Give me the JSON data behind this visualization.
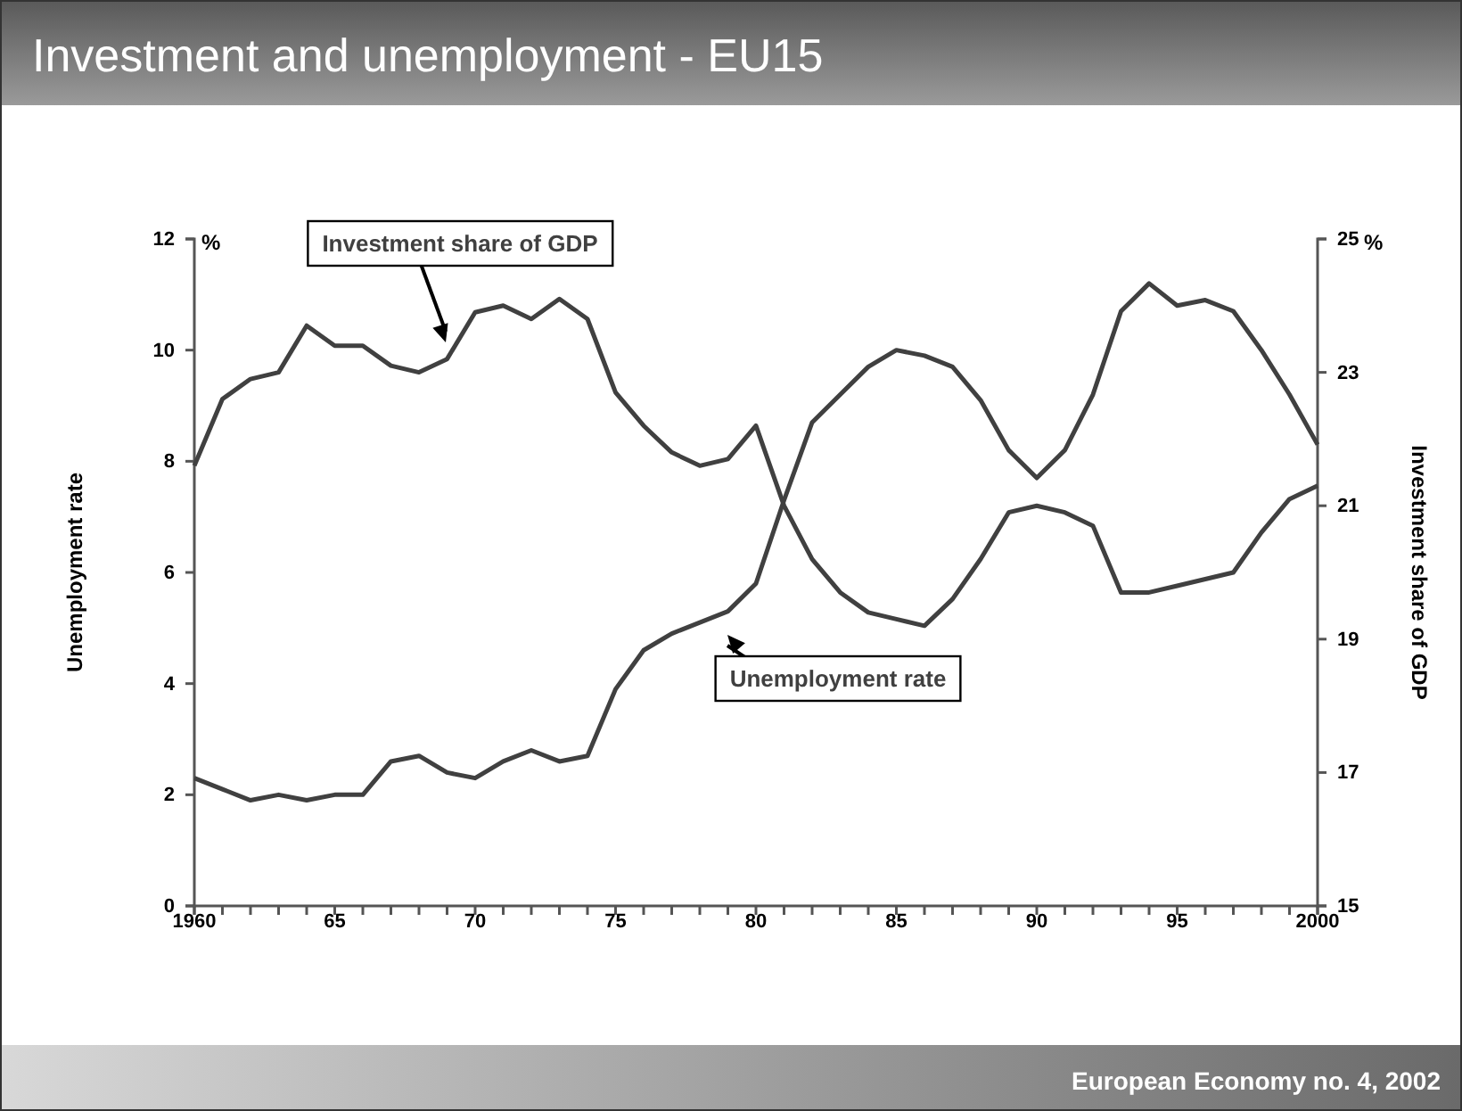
{
  "chart_data": {
    "type": "line",
    "title": "Investment and unemployment - EU15",
    "ylabel": "Unemployment rate",
    "y2label": "Investment share of GDP",
    "annotations": [
      "%",
      "%",
      "European Economy no. 4, 2002"
    ],
    "x": [
      1960,
      1961,
      1962,
      1963,
      1964,
      1965,
      1966,
      1967,
      1968,
      1969,
      1970,
      1971,
      1972,
      1973,
      1974,
      1975,
      1976,
      1977,
      1978,
      1979,
      1980,
      1981,
      1982,
      1983,
      1984,
      1985,
      1986,
      1987,
      1988,
      1989,
      1990,
      1991,
      1992,
      1993,
      1994,
      1995,
      1996,
      1997,
      1998,
      1999,
      2000
    ],
    "series": [
      {
        "name": "Unemployment rate",
        "color": "#404040",
        "values": [
          2.3,
          2.1,
          1.9,
          2.0,
          1.9,
          2.0,
          2.0,
          2.6,
          2.7,
          2.4,
          2.3,
          2.6,
          2.8,
          2.6,
          2.7,
          3.9,
          4.6,
          4.9,
          5.1,
          5.3,
          5.8,
          7.3,
          8.7,
          9.2,
          9.7,
          10.0,
          9.9,
          9.7,
          9.1,
          8.2,
          7.7,
          8.2,
          9.2,
          10.7,
          11.2,
          10.8,
          10.9,
          10.7,
          10.0,
          9.2,
          8.3
        ]
      },
      {
        "name": "Investment share of GDP",
        "color": "#404040",
        "axis": "y2",
        "values": [
          21.6,
          22.6,
          22.9,
          23.0,
          23.7,
          23.4,
          23.4,
          23.1,
          23.0,
          23.2,
          23.9,
          24.0,
          23.8,
          24.1,
          23.8,
          22.7,
          22.2,
          21.8,
          21.6,
          21.7,
          22.2,
          21.0,
          20.2,
          19.7,
          19.4,
          19.3,
          19.2,
          19.6,
          20.2,
          20.9,
          21.0,
          20.9,
          20.7,
          19.7,
          19.7,
          19.8,
          19.9,
          20.0,
          20.6,
          21.1,
          21.3
        ]
      }
    ],
    "xlim": [
      1960,
      2000
    ],
    "xticks": [
      {
        "value": 1960,
        "label": "1960"
      },
      {
        "value": 1961,
        "label": null
      },
      {
        "value": 1962,
        "label": null
      },
      {
        "value": 1963,
        "label": null
      },
      {
        "value": 1964,
        "label": null
      },
      {
        "value": 1965,
        "label": "65"
      },
      {
        "value": 1966,
        "label": null
      },
      {
        "value": 1967,
        "label": null
      },
      {
        "value": 1968,
        "label": null
      },
      {
        "value": 1969,
        "label": null
      },
      {
        "value": 1970,
        "label": "70"
      },
      {
        "value": 1971,
        "label": null
      },
      {
        "value": 1972,
        "label": null
      },
      {
        "value": 1973,
        "label": null
      },
      {
        "value": 1974,
        "label": null
      },
      {
        "value": 1975,
        "label": "75"
      },
      {
        "value": 1976,
        "label": null
      },
      {
        "value": 1977,
        "label": null
      },
      {
        "value": 1978,
        "label": null
      },
      {
        "value": 1979,
        "label": null
      },
      {
        "value": 1980,
        "label": "80"
      },
      {
        "value": 1981,
        "label": null
      },
      {
        "value": 1982,
        "label": null
      },
      {
        "value": 1983,
        "label": null
      },
      {
        "value": 1984,
        "label": null
      },
      {
        "value": 1985,
        "label": "85"
      },
      {
        "value": 1986,
        "label": null
      },
      {
        "value": 1987,
        "label": null
      },
      {
        "value": 1988,
        "label": null
      },
      {
        "value": 1989,
        "label": null
      },
      {
        "value": 1990,
        "label": "90"
      },
      {
        "value": 1991,
        "label": null
      },
      {
        "value": 1992,
        "label": null
      },
      {
        "value": 1993,
        "label": null
      },
      {
        "value": 1994,
        "label": null
      },
      {
        "value": 1995,
        "label": "95"
      },
      {
        "value": 1996,
        "label": null
      },
      {
        "value": 1997,
        "label": null
      },
      {
        "value": 1998,
        "label": null
      },
      {
        "value": 1999,
        "label": null
      },
      {
        "value": 2000,
        "label": "2000"
      }
    ],
    "ylim": [
      0,
      12
    ],
    "yticks": [
      0,
      2,
      4,
      6,
      8,
      10,
      12
    ],
    "y2lim": [
      15,
      25
    ],
    "y2ticks": [
      15,
      17,
      19,
      21,
      23,
      25
    ],
    "grid": false,
    "marker": "none",
    "line_style": "solid"
  }
}
